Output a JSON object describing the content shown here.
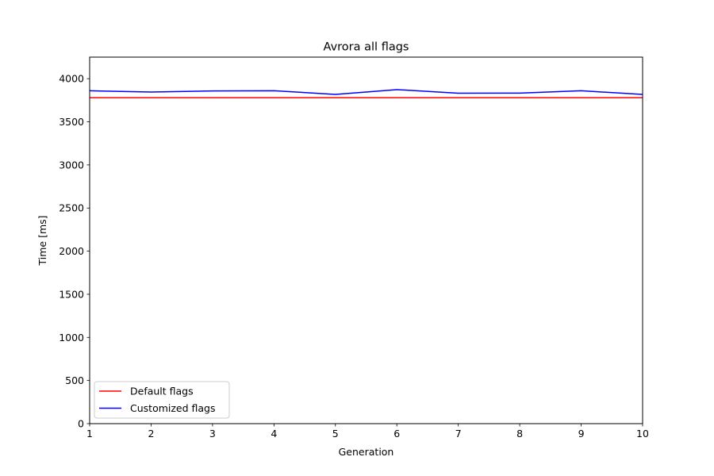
{
  "chart_data": {
    "type": "line",
    "title": "Avrora all flags",
    "xlabel": "Generation",
    "ylabel": "Time [ms]",
    "xlim": [
      1,
      10
    ],
    "ylim": [
      0,
      4250
    ],
    "xticks": [
      "1",
      "2",
      "3",
      "4",
      "5",
      "6",
      "7",
      "8",
      "9",
      "10"
    ],
    "yticks": [
      "0",
      "500",
      "1000",
      "1500",
      "2000",
      "2500",
      "3000",
      "3500",
      "4000"
    ],
    "x": [
      1,
      2,
      3,
      4,
      5,
      6,
      7,
      8,
      9,
      10
    ],
    "series": [
      {
        "name": "Default flags",
        "color": "#ff0000",
        "values": [
          3780,
          3780,
          3780,
          3780,
          3780,
          3780,
          3780,
          3780,
          3780,
          3780
        ]
      },
      {
        "name": "Customized flags",
        "color": "#0000ff",
        "values": [
          3860,
          3845,
          3858,
          3860,
          3818,
          3873,
          3832,
          3833,
          3860,
          3818
        ]
      }
    ],
    "grid": false,
    "legend": "lower-left"
  }
}
